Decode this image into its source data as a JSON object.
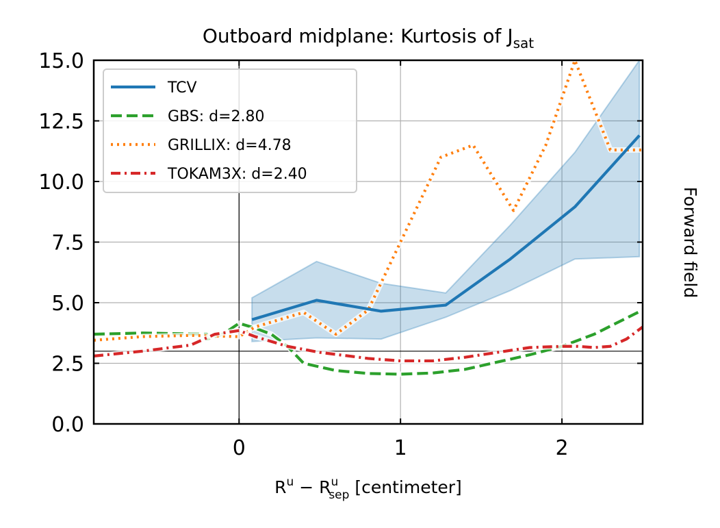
{
  "chart_data": {
    "type": "line",
    "title": {
      "main": "Outboard midplane: Kurtosis of J",
      "sub": "sat"
    },
    "xlabel": {
      "a": "R",
      "a_sup": "u",
      "minus": " − R",
      "b_sup": "u",
      "b_sub": "sep",
      "unit": " [centimeter]"
    },
    "ylabel": "",
    "right_label": "Forward field",
    "xlim": [
      -0.9,
      2.5
    ],
    "ylim": [
      0,
      15
    ],
    "x_ticks": [
      0,
      1,
      2
    ],
    "x_tick_labels": [
      "0",
      "1",
      "2"
    ],
    "y_ticks": [
      0,
      2.5,
      5,
      7.5,
      10,
      12.5,
      15
    ],
    "y_tick_labels": [
      "0.0",
      "2.5",
      "5.0",
      "7.5",
      "10.0",
      "12.5",
      "15.0"
    ],
    "grid": true,
    "reference_lines": {
      "vertical_x": 0,
      "horizontal_y": 3
    },
    "legend_position": "top-left",
    "tcv_band": {
      "x": [
        0.08,
        0.48,
        0.88,
        1.28,
        1.68,
        2.08,
        2.48
      ],
      "lower": [
        3.4,
        3.55,
        3.5,
        4.4,
        5.5,
        6.8,
        6.9
      ],
      "upper": [
        5.2,
        6.7,
        5.8,
        5.4,
        8.2,
        11.2,
        15.0
      ]
    },
    "series": [
      {
        "name": "TCV",
        "color": "#1f77b4",
        "style": "solid",
        "x": [
          0.08,
          0.48,
          0.88,
          1.28,
          1.68,
          2.08,
          2.48
        ],
        "y": [
          4.3,
          5.1,
          4.65,
          4.9,
          6.8,
          8.95,
          11.9
        ]
      },
      {
        "name": "GBS: d=2.80",
        "color": "#2ca02c",
        "style": "dashed",
        "x": [
          -0.9,
          -0.6,
          -0.2,
          -0.2,
          -0.1,
          0.0,
          0.1,
          0.2,
          0.3,
          0.4,
          0.6,
          0.8,
          1.0,
          1.2,
          1.4,
          1.6,
          1.8,
          2.0,
          2.2,
          2.5
        ],
        "y": [
          3.7,
          3.75,
          3.7,
          3.5,
          3.7,
          4.15,
          3.95,
          3.7,
          3.2,
          2.5,
          2.2,
          2.08,
          2.05,
          2.1,
          2.25,
          2.55,
          2.85,
          3.2,
          3.7,
          4.7
        ]
      },
      {
        "name": "GRILLIX: d=4.78",
        "color": "#ff7f0e",
        "style": "dotted",
        "x": [
          -0.9,
          -0.6,
          -0.3,
          0.0,
          0.1,
          0.2,
          0.4,
          0.6,
          0.8,
          1.0,
          1.25,
          1.45,
          1.7,
          1.9,
          2.08,
          2.3,
          2.5
        ],
        "y": [
          3.45,
          3.6,
          3.65,
          3.6,
          4.0,
          4.2,
          4.6,
          3.7,
          4.7,
          7.5,
          11.0,
          11.5,
          8.8,
          11.5,
          15.0,
          11.3,
          11.3
        ]
      },
      {
        "name": "TOKAM3X: d=2.40",
        "color": "#d62728",
        "style": "dashdot",
        "x": [
          -0.9,
          -0.6,
          -0.3,
          -0.15,
          0.0,
          0.1,
          0.3,
          0.5,
          0.8,
          1.0,
          1.2,
          1.4,
          1.6,
          1.8,
          2.0,
          2.1,
          2.2,
          2.3,
          2.4,
          2.5
        ],
        "y": [
          2.8,
          3.0,
          3.25,
          3.7,
          3.85,
          3.6,
          3.2,
          2.95,
          2.7,
          2.6,
          2.6,
          2.75,
          2.95,
          3.15,
          3.2,
          3.2,
          3.15,
          3.2,
          3.5,
          4.0
        ]
      }
    ]
  }
}
